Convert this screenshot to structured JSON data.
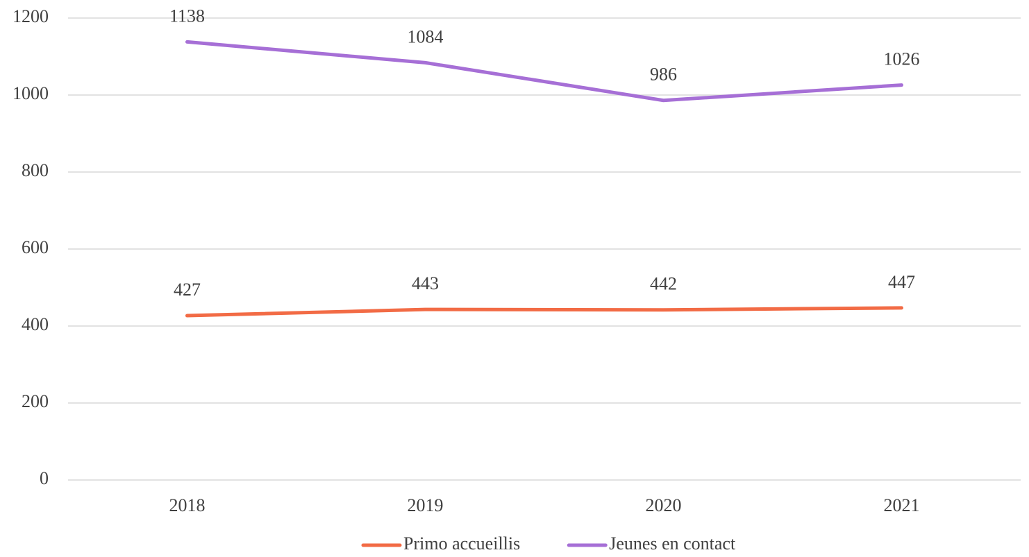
{
  "chart_data": {
    "type": "line",
    "categories": [
      "2018",
      "2019",
      "2020",
      "2021"
    ],
    "series": [
      {
        "name": "Primo accueillis",
        "color": "#f26b45",
        "values": [
          427,
          443,
          442,
          447
        ]
      },
      {
        "name": "Jeunes en contact",
        "color": "#a66fd6",
        "values": [
          1138,
          1084,
          986,
          1026
        ]
      }
    ],
    "ylim": [
      0,
      1200
    ],
    "yticks": [
      0,
      200,
      400,
      600,
      800,
      1000,
      1200
    ],
    "grid": true,
    "legend": "bottom",
    "data_labels": true
  }
}
